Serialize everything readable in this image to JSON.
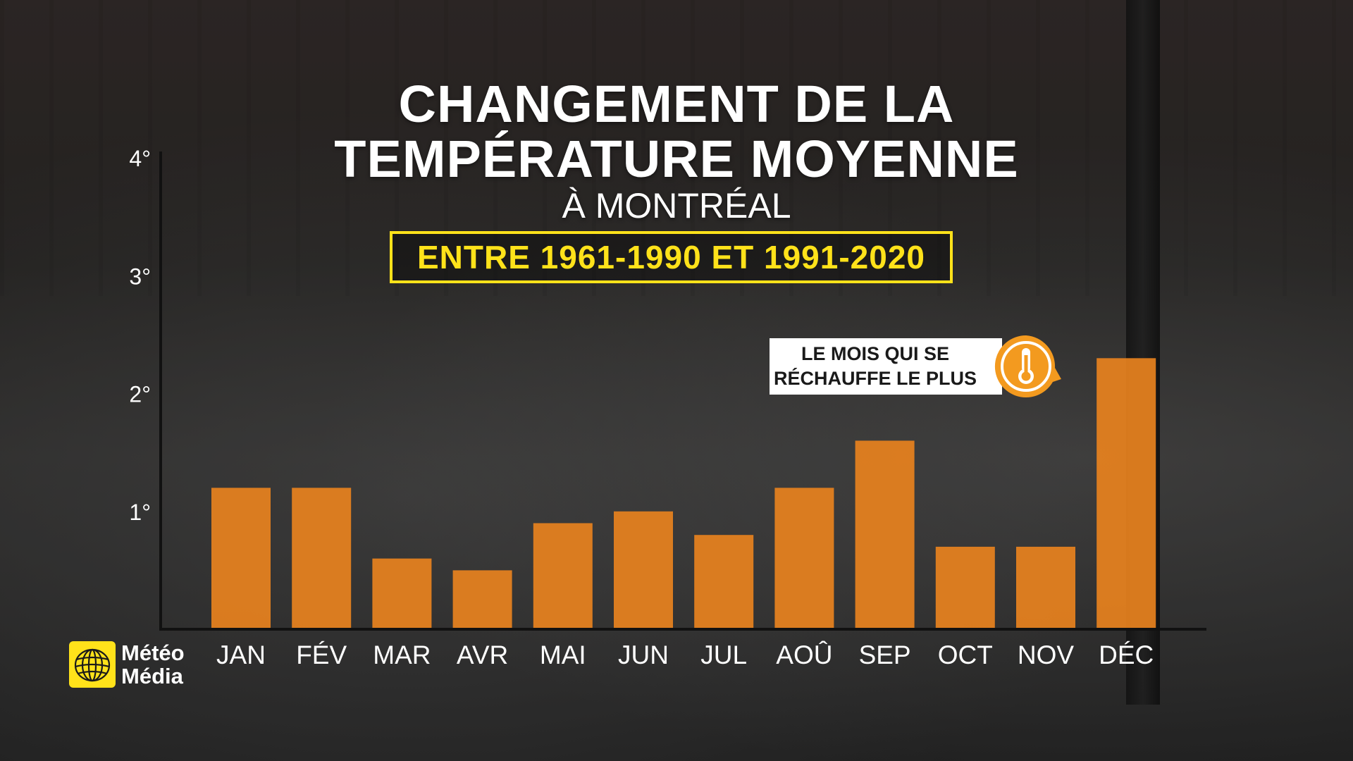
{
  "title": {
    "line1": "CHANGEMENT DE LA",
    "line2": "TEMPÉRATURE MOYENNE",
    "subtitle": "À MONTRÉAL",
    "period": "ENTRE 1961-1990 ET 1991-2020"
  },
  "callout": {
    "line1": "LE MOIS QUI SE",
    "line2": "RÉCHAUFFE LE PLUS",
    "icon": "thermometer-icon"
  },
  "logo": {
    "line1": "Météo",
    "line2": "Média"
  },
  "colors": {
    "bar": "#e8821e",
    "accent": "#ffe21a",
    "badge": "#f39a1f"
  },
  "chart_data": {
    "type": "bar",
    "categories": [
      "JAN",
      "FÉV",
      "MAR",
      "AVR",
      "MAI",
      "JUN",
      "JUL",
      "AOÛ",
      "SEP",
      "OCT",
      "NOV",
      "DÉC"
    ],
    "values": [
      1.2,
      1.2,
      0.6,
      0.5,
      0.9,
      1.0,
      0.8,
      1.2,
      1.6,
      0.7,
      0.7,
      2.3
    ],
    "ylim": [
      0,
      4
    ],
    "yticks": [
      1,
      2,
      3,
      4
    ],
    "ytick_labels": [
      "1°",
      "2°",
      "3°",
      "4°"
    ],
    "highlight_category": "DÉC",
    "grid": false,
    "legend": "none"
  }
}
